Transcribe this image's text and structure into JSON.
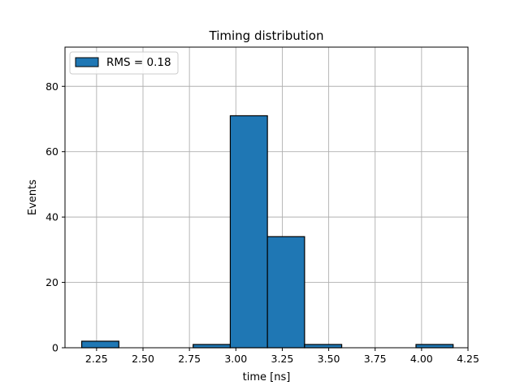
{
  "chart_data": {
    "type": "bar",
    "title": "Timing distribution",
    "xlabel": "time [ns]",
    "ylabel": "Events",
    "xlim": [
      2.08,
      4.25
    ],
    "ylim": [
      0,
      92
    ],
    "grid": true,
    "legend_position": "top-left",
    "x_ticks": [
      2.25,
      2.5,
      2.75,
      3.0,
      3.25,
      3.5,
      3.75,
      4.0,
      4.25
    ],
    "x_tick_labels": [
      "2.25",
      "2.50",
      "2.75",
      "3.00",
      "3.25",
      "3.50",
      "3.75",
      "4.00",
      "4.25"
    ],
    "y_ticks": [
      0,
      20,
      40,
      60,
      80
    ],
    "y_tick_labels": [
      "0",
      "20",
      "40",
      "60",
      "80"
    ],
    "bin_edges": [
      2.17,
      2.37,
      2.57,
      2.77,
      2.97,
      3.17,
      3.37,
      3.57,
      3.77,
      3.97,
      4.17
    ],
    "series": [
      {
        "name": "RMS = 0.18",
        "values": [
          2,
          0,
          0,
          1,
          71,
          34,
          1,
          0,
          0,
          1
        ]
      }
    ],
    "colors": {
      "bar_fill": "#1f77b4",
      "bar_edge": "#000000",
      "grid": "#b0b0b0"
    }
  }
}
